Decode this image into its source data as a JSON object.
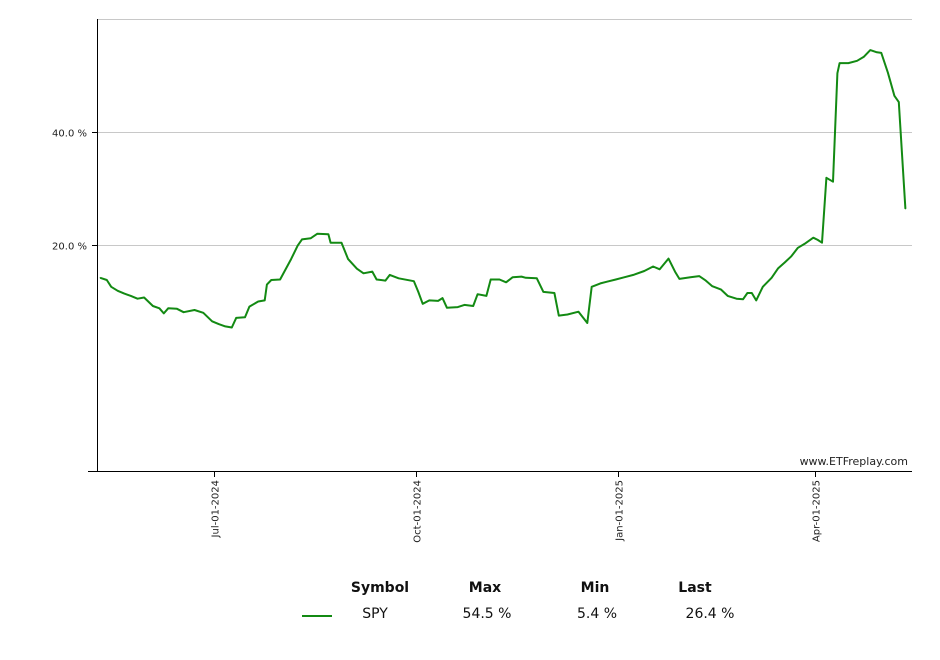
{
  "chart_data": {
    "type": "line",
    "title": "",
    "xlabel": "",
    "ylabel": "",
    "ylim": [
      -20,
      60
    ],
    "yticks": [
      {
        "value": 20,
        "label": "20.0 %"
      },
      {
        "value": 40,
        "label": "40.0 %"
      }
    ],
    "xlim": [
      "2024-05-09",
      "2025-05-15"
    ],
    "xticks": [
      {
        "date": "2024-07-01",
        "label": "Jul-01-2024"
      },
      {
        "date": "2024-10-01",
        "label": "Oct-01-2024"
      },
      {
        "date": "2025-01-01",
        "label": "Jan-01-2025"
      },
      {
        "date": "2025-04-01",
        "label": "Apr-01-2025"
      }
    ],
    "grid": true,
    "series": [
      {
        "name": "SPY",
        "color": "#138a13",
        "points": [
          [
            "2024-05-10",
            14.2
          ],
          [
            "2024-05-13",
            13.8
          ],
          [
            "2024-05-15",
            12.6
          ],
          [
            "2024-05-18",
            11.9
          ],
          [
            "2024-05-21",
            11.4
          ],
          [
            "2024-05-24",
            11.0
          ],
          [
            "2024-05-27",
            10.5
          ],
          [
            "2024-05-30",
            10.7
          ],
          [
            "2024-06-03",
            9.2
          ],
          [
            "2024-06-06",
            8.8
          ],
          [
            "2024-06-08",
            7.9
          ],
          [
            "2024-06-10",
            8.8
          ],
          [
            "2024-06-14",
            8.7
          ],
          [
            "2024-06-17",
            8.1
          ],
          [
            "2024-06-22",
            8.5
          ],
          [
            "2024-06-26",
            8.0
          ],
          [
            "2024-06-30",
            6.5
          ],
          [
            "2024-07-03",
            6.0
          ],
          [
            "2024-07-06",
            5.6
          ],
          [
            "2024-07-09",
            5.4
          ],
          [
            "2024-07-11",
            7.1
          ],
          [
            "2024-07-15",
            7.2
          ],
          [
            "2024-07-17",
            9.1
          ],
          [
            "2024-07-21",
            10.0
          ],
          [
            "2024-07-24",
            10.2
          ],
          [
            "2024-07-25",
            13.0
          ],
          [
            "2024-07-27",
            13.8
          ],
          [
            "2024-07-31",
            13.9
          ],
          [
            "2024-08-05",
            17.5
          ],
          [
            "2024-08-08",
            19.9
          ],
          [
            "2024-08-10",
            21.0
          ],
          [
            "2024-08-14",
            21.2
          ],
          [
            "2024-08-17",
            22.0
          ],
          [
            "2024-08-22",
            21.9
          ],
          [
            "2024-08-23",
            20.4
          ],
          [
            "2024-08-28",
            20.4
          ],
          [
            "2024-08-31",
            17.5
          ],
          [
            "2024-09-04",
            15.8
          ],
          [
            "2024-09-07",
            15.0
          ],
          [
            "2024-09-11",
            15.3
          ],
          [
            "2024-09-13",
            13.9
          ],
          [
            "2024-09-17",
            13.7
          ],
          [
            "2024-09-19",
            14.7
          ],
          [
            "2024-09-23",
            14.1
          ],
          [
            "2024-09-30",
            13.6
          ],
          [
            "2024-10-02",
            11.7
          ],
          [
            "2024-10-04",
            9.6
          ],
          [
            "2024-10-07",
            10.2
          ],
          [
            "2024-10-11",
            10.1
          ],
          [
            "2024-10-13",
            10.6
          ],
          [
            "2024-10-15",
            8.9
          ],
          [
            "2024-10-20",
            9.0
          ],
          [
            "2024-10-23",
            9.4
          ],
          [
            "2024-10-27",
            9.2
          ],
          [
            "2024-10-29",
            11.3
          ],
          [
            "2024-11-02",
            11.0
          ],
          [
            "2024-11-04",
            13.9
          ],
          [
            "2024-11-08",
            13.9
          ],
          [
            "2024-11-11",
            13.4
          ],
          [
            "2024-11-14",
            14.3
          ],
          [
            "2024-11-18",
            14.4
          ],
          [
            "2024-11-20",
            14.2
          ],
          [
            "2024-11-25",
            14.1
          ],
          [
            "2024-11-28",
            11.7
          ],
          [
            "2024-12-03",
            11.5
          ],
          [
            "2024-12-05",
            7.5
          ],
          [
            "2024-12-09",
            7.7
          ],
          [
            "2024-12-14",
            8.2
          ],
          [
            "2024-12-18",
            6.2
          ],
          [
            "2024-12-20",
            12.6
          ],
          [
            "2024-12-24",
            13.2
          ],
          [
            "2024-12-27",
            13.5
          ],
          [
            "2024-12-31",
            13.9
          ],
          [
            "2025-01-04",
            14.3
          ],
          [
            "2025-01-08",
            14.7
          ],
          [
            "2025-01-13",
            15.4
          ],
          [
            "2025-01-17",
            16.2
          ],
          [
            "2025-01-20",
            15.7
          ],
          [
            "2025-01-24",
            17.6
          ],
          [
            "2025-01-27",
            15.3
          ],
          [
            "2025-01-29",
            14.0
          ],
          [
            "2025-02-03",
            14.3
          ],
          [
            "2025-02-07",
            14.5
          ],
          [
            "2025-02-10",
            13.7
          ],
          [
            "2025-02-13",
            12.7
          ],
          [
            "2025-02-17",
            12.1
          ],
          [
            "2025-02-20",
            11.0
          ],
          [
            "2025-02-24",
            10.5
          ],
          [
            "2025-02-27",
            10.4
          ],
          [
            "2025-03-01",
            11.5
          ],
          [
            "2025-03-03",
            11.5
          ],
          [
            "2025-03-05",
            10.2
          ],
          [
            "2025-03-08",
            12.6
          ],
          [
            "2025-03-12",
            14.2
          ],
          [
            "2025-03-15",
            15.9
          ],
          [
            "2025-03-18",
            16.9
          ],
          [
            "2025-03-21",
            18.0
          ],
          [
            "2025-03-24",
            19.5
          ],
          [
            "2025-03-27",
            20.2
          ],
          [
            "2025-03-31",
            21.3
          ],
          [
            "2025-04-02",
            20.9
          ],
          [
            "2025-04-04",
            20.4
          ],
          [
            "2025-04-06",
            31.9
          ],
          [
            "2025-04-09",
            31.2
          ],
          [
            "2025-04-11",
            50.4
          ],
          [
            "2025-04-12",
            52.2
          ],
          [
            "2025-04-16",
            52.2
          ],
          [
            "2025-04-20",
            52.6
          ],
          [
            "2025-04-23",
            53.3
          ],
          [
            "2025-04-26",
            54.5
          ],
          [
            "2025-04-29",
            54.1
          ],
          [
            "2025-05-01",
            54.0
          ],
          [
            "2025-05-04",
            50.5
          ],
          [
            "2025-05-07",
            46.4
          ],
          [
            "2025-05-09",
            45.3
          ],
          [
            "2025-05-12",
            26.4
          ]
        ]
      }
    ],
    "watermark": "www.ETFreplay.com"
  },
  "legend": {
    "headers": {
      "symbol": "Symbol",
      "max": "Max",
      "min": "Min",
      "last": "Last"
    },
    "rows": [
      {
        "symbol": "SPY",
        "max": "54.5 %",
        "min": "5.4 %",
        "last": "26.4 %",
        "color": "#138a13"
      }
    ]
  }
}
